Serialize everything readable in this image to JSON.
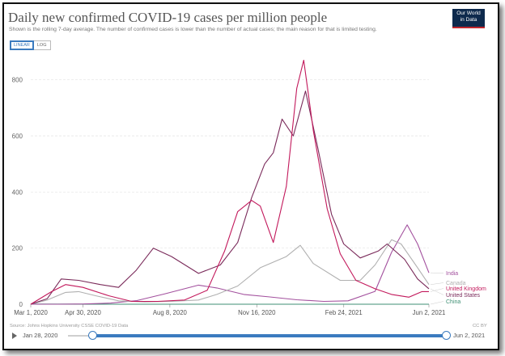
{
  "header": {
    "title": "Daily new confirmed COVID-19 cases per million people",
    "subtitle": "Shown is the rolling 7-day average. The number of confirmed cases is lower than the number of actual cases; the main reason for that is limited testing.",
    "logo_line1": "Our World",
    "logo_line2": "in Data"
  },
  "controls": {
    "linear_label": "LINEAR",
    "log_label": "LOG"
  },
  "footer": {
    "source": "Source: Johns Hopkins University CSSE COVID-19 Data",
    "license": "CC BY"
  },
  "timeline": {
    "start_label": "Jan 28, 2020",
    "end_label": "Jun 2, 2021"
  },
  "colors": {
    "India": "#a3519e",
    "Canada": "#b0b0b0",
    "United Kingdom": "#c2185b",
    "United States": "#7a2a5a",
    "China": "#3f8f74",
    "accent": "#3b7bbf"
  },
  "chart_data": {
    "type": "line",
    "title": "Daily new confirmed COVID-19 cases per million people",
    "ylim": [
      0,
      900
    ],
    "yticks": [
      0,
      200,
      400,
      600,
      800
    ],
    "xlim": [
      "2020-03-01",
      "2021-06-02"
    ],
    "xticks": [
      "Mar 1, 2020",
      "Apr 30, 2020",
      "Aug 8, 2020",
      "Nov 16, 2020",
      "Feb 24, 2021",
      "Jun 2, 2021"
    ],
    "xtick_dates": [
      "2020-03-01",
      "2020-04-30",
      "2020-08-08",
      "2020-11-16",
      "2021-02-24",
      "2021-06-02"
    ],
    "grid": true,
    "legend": "right",
    "series": [
      {
        "name": "India",
        "points": [
          [
            "2020-03-01",
            0
          ],
          [
            "2020-04-01",
            0
          ],
          [
            "2020-05-01",
            1
          ],
          [
            "2020-06-01",
            4
          ],
          [
            "2020-07-01",
            13
          ],
          [
            "2020-08-01",
            36
          ],
          [
            "2020-09-10",
            68
          ],
          [
            "2020-10-01",
            58
          ],
          [
            "2020-11-01",
            35
          ],
          [
            "2020-12-01",
            26
          ],
          [
            "2021-01-01",
            16
          ],
          [
            "2021-02-01",
            10
          ],
          [
            "2021-03-01",
            12
          ],
          [
            "2021-04-01",
            46
          ],
          [
            "2021-04-20",
            185
          ],
          [
            "2021-05-08",
            283
          ],
          [
            "2021-05-20",
            215
          ],
          [
            "2021-06-02",
            112
          ]
        ]
      },
      {
        "name": "Canada",
        "points": [
          [
            "2020-03-01",
            0
          ],
          [
            "2020-03-20",
            15
          ],
          [
            "2020-04-10",
            42
          ],
          [
            "2020-04-25",
            45
          ],
          [
            "2020-05-15",
            30
          ],
          [
            "2020-06-10",
            12
          ],
          [
            "2020-07-10",
            8
          ],
          [
            "2020-08-10",
            10
          ],
          [
            "2020-09-10",
            15
          ],
          [
            "2020-10-01",
            35
          ],
          [
            "2020-10-25",
            65
          ],
          [
            "2020-11-20",
            130
          ],
          [
            "2020-12-20",
            170
          ],
          [
            "2021-01-05",
            210
          ],
          [
            "2021-01-20",
            145
          ],
          [
            "2021-02-20",
            85
          ],
          [
            "2021-03-15",
            85
          ],
          [
            "2021-04-01",
            140
          ],
          [
            "2021-04-20",
            230
          ],
          [
            "2021-05-01",
            215
          ],
          [
            "2021-05-20",
            130
          ],
          [
            "2021-06-02",
            70
          ]
        ]
      },
      {
        "name": "United Kingdom",
        "points": [
          [
            "2020-03-01",
            0
          ],
          [
            "2020-03-25",
            45
          ],
          [
            "2020-04-10",
            70
          ],
          [
            "2020-04-30",
            60
          ],
          [
            "2020-05-30",
            30
          ],
          [
            "2020-06-25",
            10
          ],
          [
            "2020-07-25",
            10
          ],
          [
            "2020-08-25",
            15
          ],
          [
            "2020-09-20",
            50
          ],
          [
            "2020-10-10",
            190
          ],
          [
            "2020-10-25",
            330
          ],
          [
            "2020-11-10",
            370
          ],
          [
            "2020-11-20",
            350
          ],
          [
            "2020-12-05",
            220
          ],
          [
            "2020-12-20",
            420
          ],
          [
            "2021-01-01",
            770
          ],
          [
            "2021-01-09",
            870
          ],
          [
            "2021-01-20",
            620
          ],
          [
            "2021-02-05",
            340
          ],
          [
            "2021-02-20",
            180
          ],
          [
            "2021-03-10",
            85
          ],
          [
            "2021-04-01",
            55
          ],
          [
            "2021-04-20",
            35
          ],
          [
            "2021-05-10",
            25
          ],
          [
            "2021-05-25",
            45
          ],
          [
            "2021-06-02",
            45
          ]
        ]
      },
      {
        "name": "United States",
        "points": [
          [
            "2020-03-01",
            0
          ],
          [
            "2020-03-20",
            20
          ],
          [
            "2020-04-05",
            90
          ],
          [
            "2020-04-25",
            85
          ],
          [
            "2020-05-20",
            70
          ],
          [
            "2020-06-10",
            60
          ],
          [
            "2020-06-30",
            120
          ],
          [
            "2020-07-20",
            200
          ],
          [
            "2020-08-10",
            170
          ],
          [
            "2020-09-10",
            110
          ],
          [
            "2020-10-05",
            140
          ],
          [
            "2020-10-25",
            220
          ],
          [
            "2020-11-10",
            380
          ],
          [
            "2020-11-25",
            500
          ],
          [
            "2020-12-05",
            540
          ],
          [
            "2020-12-15",
            660
          ],
          [
            "2020-12-28",
            600
          ],
          [
            "2021-01-11",
            760
          ],
          [
            "2021-01-25",
            560
          ],
          [
            "2021-02-10",
            320
          ],
          [
            "2021-02-24",
            215
          ],
          [
            "2021-03-15",
            165
          ],
          [
            "2021-04-05",
            190
          ],
          [
            "2021-04-15",
            215
          ],
          [
            "2021-05-05",
            160
          ],
          [
            "2021-05-20",
            90
          ],
          [
            "2021-06-02",
            55
          ]
        ]
      },
      {
        "name": "China",
        "points": [
          [
            "2020-03-01",
            0.5
          ],
          [
            "2020-06-01",
            0
          ],
          [
            "2020-09-01",
            0
          ],
          [
            "2020-12-01",
            0
          ],
          [
            "2021-03-01",
            0
          ],
          [
            "2021-06-02",
            0
          ]
        ]
      }
    ]
  }
}
